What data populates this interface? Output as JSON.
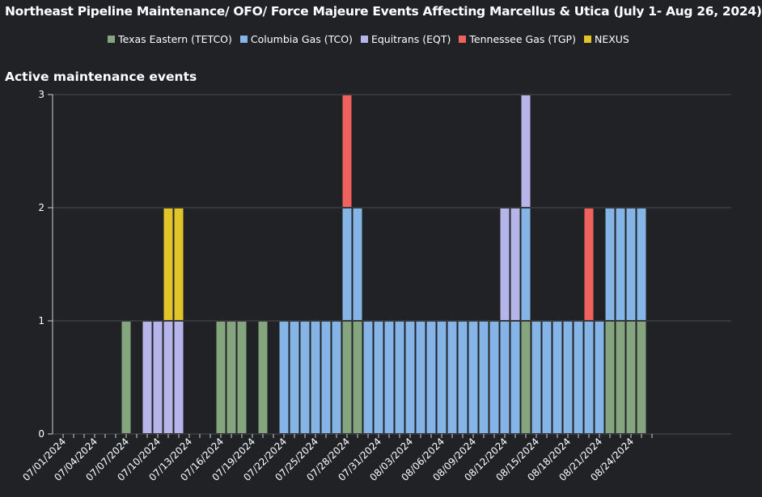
{
  "title": "Northeast Pipeline Maintenance/ OFO/ Force Majeure Events Affecting Marcellus & Utica (July 1- Aug 26, 2024)",
  "subtitle": "Active maintenance events",
  "colors": {
    "background": "#212226",
    "grid": "#4a4b50",
    "axis": "#d0d0d0"
  },
  "chart_data": {
    "type": "bar",
    "stacked": true,
    "title": "Northeast Pipeline Maintenance/ OFO/ Force Majeure Events Affecting Marcellus & Utica (July 1- Aug 26, 2024)",
    "ylabel": "Active maintenance events",
    "ylim": [
      0,
      3
    ],
    "yticks": [
      0,
      1,
      2,
      3
    ],
    "grid": true,
    "legend_position": "top-center",
    "categories": [
      "07/01/2024",
      "07/02/2024",
      "07/03/2024",
      "07/04/2024",
      "07/05/2024",
      "07/06/2024",
      "07/07/2024",
      "07/08/2024",
      "07/09/2024",
      "07/10/2024",
      "07/11/2024",
      "07/12/2024",
      "07/13/2024",
      "07/14/2024",
      "07/15/2024",
      "07/16/2024",
      "07/17/2024",
      "07/18/2024",
      "07/19/2024",
      "07/20/2024",
      "07/21/2024",
      "07/22/2024",
      "07/23/2024",
      "07/24/2024",
      "07/25/2024",
      "07/26/2024",
      "07/27/2024",
      "07/28/2024",
      "07/29/2024",
      "07/30/2024",
      "07/31/2024",
      "08/01/2024",
      "08/02/2024",
      "08/03/2024",
      "08/04/2024",
      "08/05/2024",
      "08/06/2024",
      "08/07/2024",
      "08/08/2024",
      "08/09/2024",
      "08/10/2024",
      "08/11/2024",
      "08/12/2024",
      "08/13/2024",
      "08/14/2024",
      "08/15/2024",
      "08/16/2024",
      "08/17/2024",
      "08/18/2024",
      "08/19/2024",
      "08/20/2024",
      "08/21/2024",
      "08/22/2024",
      "08/23/2024",
      "08/24/2024",
      "08/25/2024",
      "08/26/2024"
    ],
    "tick_labels": [
      "07/01/2024",
      "07/04/2024",
      "07/07/2024",
      "07/10/2024",
      "07/13/2024",
      "07/16/2024",
      "07/19/2024",
      "07/22/2024",
      "07/25/2024",
      "07/28/2024",
      "07/31/2024",
      "08/03/2024",
      "08/06/2024",
      "08/09/2024",
      "08/12/2024",
      "08/15/2024",
      "08/18/2024",
      "08/21/2024",
      "08/24/2024"
    ],
    "series": [
      {
        "name": "Texas Eastern (TETCO)",
        "color": "#85a57e",
        "values": [
          0,
          0,
          0,
          0,
          0,
          0,
          1,
          0,
          0,
          0,
          0,
          0,
          0,
          0,
          0,
          1,
          1,
          1,
          0,
          1,
          0,
          0,
          0,
          0,
          0,
          0,
          0,
          1,
          1,
          0,
          0,
          0,
          0,
          0,
          0,
          0,
          0,
          0,
          0,
          0,
          0,
          0,
          0,
          0,
          1,
          0,
          0,
          0,
          0,
          0,
          0,
          0,
          1,
          1,
          1,
          1,
          0
        ]
      },
      {
        "name": "Columbia Gas (TCO)",
        "color": "#85b5e6",
        "values": [
          0,
          0,
          0,
          0,
          0,
          0,
          0,
          0,
          0,
          0,
          0,
          0,
          0,
          0,
          0,
          0,
          0,
          0,
          0,
          0,
          0,
          1,
          1,
          1,
          1,
          1,
          1,
          1,
          1,
          1,
          1,
          1,
          1,
          1,
          1,
          1,
          1,
          1,
          1,
          1,
          1,
          1,
          1,
          1,
          1,
          1,
          1,
          1,
          1,
          1,
          1,
          1,
          1,
          1,
          1,
          1,
          0
        ]
      },
      {
        "name": "Equitrans (EQT)",
        "color": "#b5b5ea",
        "values": [
          0,
          0,
          0,
          0,
          0,
          0,
          0,
          0,
          1,
          1,
          1,
          1,
          0,
          0,
          0,
          0,
          0,
          0,
          0,
          0,
          0,
          0,
          0,
          0,
          0,
          0,
          0,
          0,
          0,
          0,
          0,
          0,
          0,
          0,
          0,
          0,
          0,
          0,
          0,
          0,
          0,
          0,
          1,
          1,
          1,
          0,
          0,
          0,
          0,
          0,
          0,
          0,
          0,
          0,
          0,
          0,
          0
        ]
      },
      {
        "name": "Tennessee Gas (TGP)",
        "color": "#f0625e",
        "values": [
          0,
          0,
          0,
          0,
          0,
          0,
          0,
          0,
          0,
          0,
          0,
          0,
          0,
          0,
          0,
          0,
          0,
          0,
          0,
          0,
          0,
          0,
          0,
          0,
          0,
          0,
          0,
          1,
          0,
          0,
          0,
          0,
          0,
          0,
          0,
          0,
          0,
          0,
          0,
          0,
          0,
          0,
          0,
          0,
          0,
          0,
          0,
          0,
          0,
          0,
          1,
          0,
          0,
          0,
          0,
          0,
          0
        ]
      },
      {
        "name": "NEXUS",
        "color": "#e0c42a",
        "values": [
          0,
          0,
          0,
          0,
          0,
          0,
          0,
          0,
          0,
          0,
          1,
          1,
          0,
          0,
          0,
          0,
          0,
          0,
          0,
          0,
          0,
          0,
          0,
          0,
          0,
          0,
          0,
          0,
          0,
          0,
          0,
          0,
          0,
          0,
          0,
          0,
          0,
          0,
          0,
          0,
          0,
          0,
          0,
          0,
          0,
          0,
          0,
          0,
          0,
          0,
          0,
          0,
          0,
          0,
          0,
          0,
          0
        ]
      }
    ]
  }
}
